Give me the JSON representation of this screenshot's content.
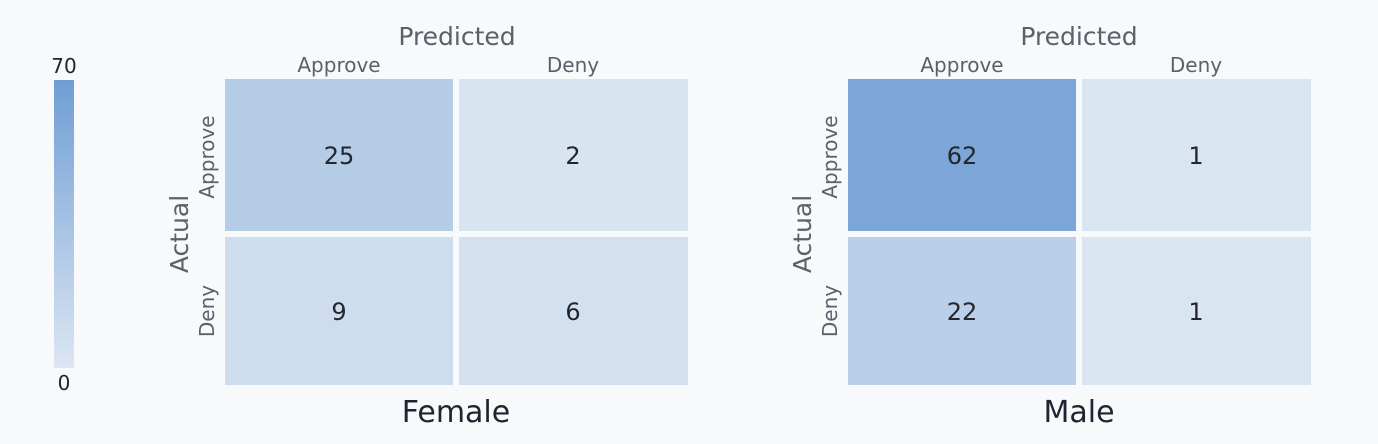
{
  "chart_data": {
    "type": "heatmap",
    "colorbar": {
      "min": 0,
      "max": 70,
      "min_label": "0",
      "max_label": "70",
      "color_low": "#dce6f2",
      "color_high": "#6f9ed4"
    },
    "panels": [
      {
        "title": "Female",
        "xlabel": "Predicted",
        "ylabel": "Actual",
        "x_categories": [
          "Approve",
          "Deny"
        ],
        "y_categories": [
          "Approve",
          "Deny"
        ],
        "values": [
          [
            25,
            2
          ],
          [
            9,
            6
          ]
        ]
      },
      {
        "title": "Male",
        "xlabel": "Predicted",
        "ylabel": "Actual",
        "x_categories": [
          "Approve",
          "Deny"
        ],
        "y_categories": [
          "Approve",
          "Deny"
        ],
        "values": [
          [
            62,
            1
          ],
          [
            22,
            1
          ]
        ]
      }
    ]
  }
}
